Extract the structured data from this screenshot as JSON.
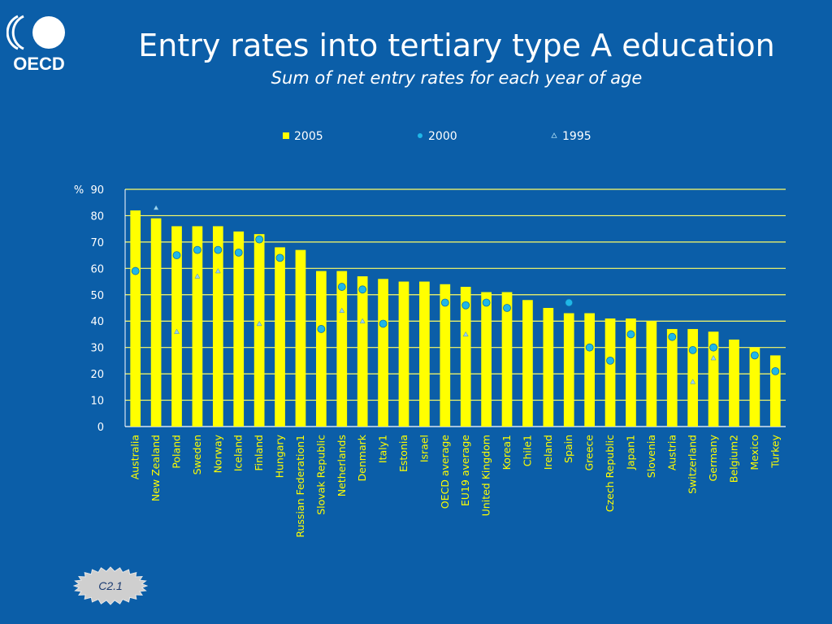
{
  "header": {
    "title": "Entry rates into tertiary type A education",
    "subtitle": "Sum of net entry rates for each year of age",
    "logo_text": "OECD"
  },
  "badge": {
    "label": "C2.1"
  },
  "colors": {
    "background": "#0b5ea8",
    "bar_2005": "#ffff00",
    "marker_2000": "#1fb7e8",
    "marker_1995": "#9fd3ee",
    "gridline": "#ffff66",
    "text": "#ffffff"
  },
  "chart_data": {
    "type": "bar",
    "ylabel": "%",
    "xlabel": "",
    "ylim": [
      0,
      90
    ],
    "yticks": [
      0,
      10,
      20,
      30,
      40,
      50,
      60,
      70,
      80,
      90
    ],
    "grid": true,
    "legend_position": "top",
    "categories": [
      "Australia",
      "New Zealand",
      "Poland",
      "Sweden",
      "Norway",
      "Iceland",
      "Finland",
      "Hungary",
      "Russian Federation1",
      "Slovak Republic",
      "Netherlands",
      "Denmark",
      "Italy1",
      "Estonia",
      "Israel",
      "OECD average",
      "EU19 average",
      "United Kingdom",
      "Korea1",
      "Chile1",
      "Ireland",
      "Spain",
      "Greece",
      "Czech Republic",
      "Japan1",
      "Slovenia",
      "Austria",
      "Switzerland",
      "Germany",
      "Belgium2",
      "Mexico",
      "Turkey"
    ],
    "series": [
      {
        "name": "2005",
        "type": "bar",
        "values": [
          82,
          79,
          76,
          76,
          76,
          74,
          73,
          68,
          67,
          59,
          59,
          57,
          56,
          55,
          55,
          54,
          53,
          51,
          51,
          48,
          45,
          43,
          43,
          41,
          41,
          40,
          37,
          37,
          36,
          33,
          30,
          27
        ]
      },
      {
        "name": "2000",
        "type": "scatter",
        "marker": "circle",
        "values": [
          59,
          null,
          65,
          67,
          67,
          66,
          71,
          64,
          null,
          37,
          53,
          52,
          39,
          null,
          null,
          47,
          46,
          47,
          45,
          null,
          null,
          47,
          30,
          25,
          35,
          null,
          34,
          29,
          30,
          null,
          27,
          21
        ]
      },
      {
        "name": "1995",
        "type": "scatter",
        "marker": "triangle",
        "values": [
          null,
          83,
          36,
          57,
          59,
          null,
          39,
          null,
          null,
          null,
          44,
          40,
          null,
          null,
          null,
          null,
          35,
          null,
          null,
          null,
          null,
          null,
          null,
          null,
          null,
          null,
          null,
          17,
          26,
          null,
          null,
          null
        ]
      }
    ]
  }
}
